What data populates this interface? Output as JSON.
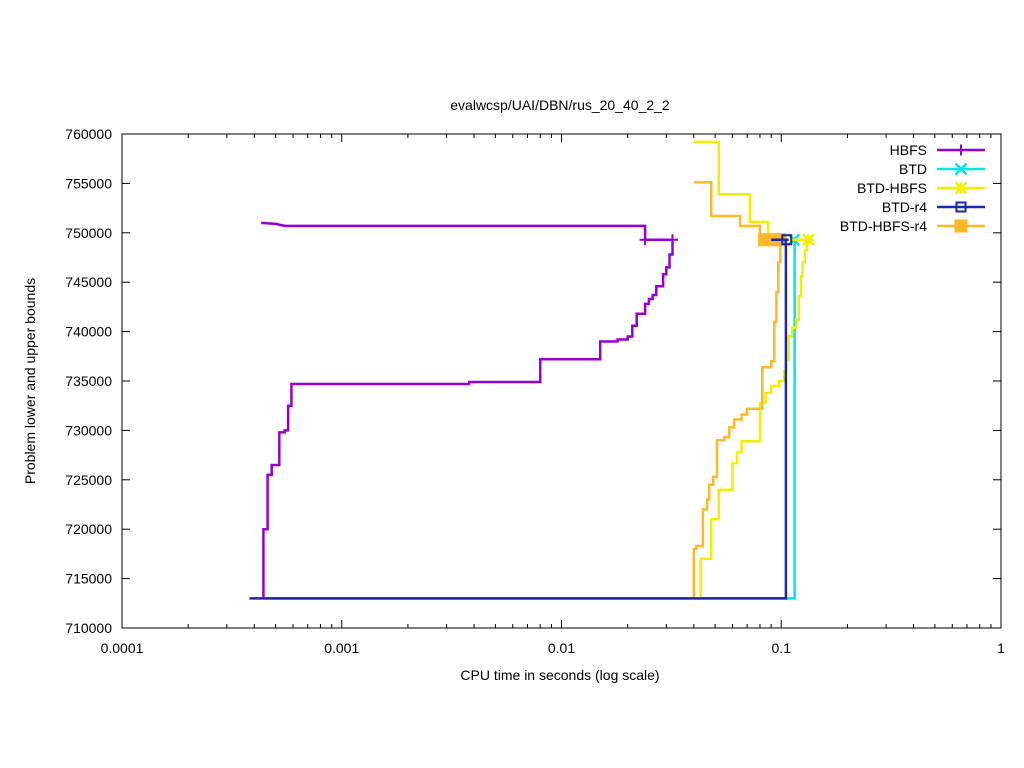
{
  "chart_data": {
    "type": "line",
    "title": "evalwcsp/UAI/DBN/rus_20_40_2_2",
    "xlabel": "CPU time in seconds (log scale)",
    "ylabel": "Problem lower and upper bounds",
    "xscale": "log",
    "xlim": [
      0.0001,
      1
    ],
    "ylim": [
      710000,
      760000
    ],
    "x_ticks": [
      0.0001,
      0.001,
      0.01,
      0.1,
      1
    ],
    "x_tick_labels": [
      "0.0001",
      "0.001",
      "0.01",
      "0.1",
      "1"
    ],
    "y_ticks": [
      710000,
      715000,
      720000,
      725000,
      730000,
      735000,
      740000,
      745000,
      750000,
      755000,
      760000
    ],
    "y_tick_labels": [
      "710000",
      "715000",
      "720000",
      "725000",
      "730000",
      "735000",
      "740000",
      "745000",
      "750000",
      "755000",
      "760000"
    ],
    "grid": false,
    "legend_position": "top-right",
    "series": [
      {
        "name": "HBFS",
        "color": "#9400d3",
        "marker": "plus",
        "upper": [
          [
            0.00043,
            751000
          ],
          [
            0.0005,
            750900
          ],
          [
            0.00055,
            750700
          ],
          [
            0.024,
            750700
          ],
          [
            0.024,
            749300
          ],
          [
            0.032,
            749300
          ]
        ],
        "lower": [
          [
            0.00044,
            713000
          ],
          [
            0.00044,
            720000
          ],
          [
            0.00046,
            720000
          ],
          [
            0.00046,
            725500
          ],
          [
            0.00048,
            725500
          ],
          [
            0.00048,
            726500
          ],
          [
            0.00052,
            726500
          ],
          [
            0.00052,
            729800
          ],
          [
            0.00055,
            729800
          ],
          [
            0.00055,
            730000
          ],
          [
            0.00057,
            730000
          ],
          [
            0.00057,
            732500
          ],
          [
            0.00059,
            732500
          ],
          [
            0.00059,
            734700
          ],
          [
            0.0038,
            734700
          ],
          [
            0.0038,
            734900
          ],
          [
            0.008,
            734900
          ],
          [
            0.008,
            737200
          ],
          [
            0.015,
            737200
          ],
          [
            0.015,
            739000
          ],
          [
            0.018,
            739000
          ],
          [
            0.018,
            739200
          ],
          [
            0.02,
            739200
          ],
          [
            0.02,
            739500
          ],
          [
            0.021,
            739500
          ],
          [
            0.021,
            740600
          ],
          [
            0.022,
            740600
          ],
          [
            0.022,
            741800
          ],
          [
            0.024,
            741800
          ],
          [
            0.024,
            742800
          ],
          [
            0.025,
            742800
          ],
          [
            0.025,
            743300
          ],
          [
            0.026,
            743300
          ],
          [
            0.026,
            743700
          ],
          [
            0.027,
            743700
          ],
          [
            0.027,
            744600
          ],
          [
            0.029,
            744600
          ],
          [
            0.029,
            745800
          ],
          [
            0.03,
            745800
          ],
          [
            0.03,
            746500
          ],
          [
            0.031,
            746500
          ],
          [
            0.031,
            747800
          ],
          [
            0.032,
            747800
          ],
          [
            0.032,
            749300
          ]
        ],
        "markers": [
          [
            0.024,
            749300
          ],
          [
            0.032,
            749300
          ]
        ]
      },
      {
        "name": "BTD",
        "color": "#00e5e5",
        "marker": "x",
        "upper": [
          [
            0.108,
            749300
          ],
          [
            0.116,
            749300
          ]
        ],
        "lower": [
          [
            0.00045,
            713000
          ],
          [
            0.115,
            713000
          ],
          [
            0.115,
            749300
          ]
        ],
        "markers": [
          [
            0.114,
            749300
          ]
        ]
      },
      {
        "name": "BTD-HBFS",
        "color": "#f0f000",
        "marker": "star",
        "upper": [
          [
            0.04,
            759200
          ],
          [
            0.052,
            759200
          ],
          [
            0.052,
            753900
          ],
          [
            0.072,
            753900
          ],
          [
            0.072,
            751100
          ],
          [
            0.087,
            751100
          ],
          [
            0.087,
            749300
          ],
          [
            0.133,
            749300
          ]
        ],
        "lower": [
          [
            0.00045,
            713000
          ],
          [
            0.043,
            713000
          ],
          [
            0.043,
            717000
          ],
          [
            0.048,
            717000
          ],
          [
            0.048,
            721000
          ],
          [
            0.052,
            721000
          ],
          [
            0.052,
            724000
          ],
          [
            0.06,
            724000
          ],
          [
            0.06,
            726700
          ],
          [
            0.063,
            726700
          ],
          [
            0.063,
            727800
          ],
          [
            0.066,
            727800
          ],
          [
            0.066,
            728900
          ],
          [
            0.08,
            728900
          ],
          [
            0.08,
            732800
          ],
          [
            0.085,
            732800
          ],
          [
            0.085,
            733800
          ],
          [
            0.09,
            733800
          ],
          [
            0.09,
            734500
          ],
          [
            0.098,
            734500
          ],
          [
            0.098,
            735000
          ],
          [
            0.103,
            735000
          ],
          [
            0.103,
            736000
          ],
          [
            0.105,
            736000
          ],
          [
            0.105,
            737100
          ],
          [
            0.108,
            737100
          ],
          [
            0.108,
            739500
          ],
          [
            0.112,
            739500
          ],
          [
            0.112,
            740400
          ],
          [
            0.117,
            740400
          ],
          [
            0.117,
            741200
          ],
          [
            0.12,
            741200
          ],
          [
            0.12,
            743600
          ],
          [
            0.123,
            743600
          ],
          [
            0.123,
            745600
          ],
          [
            0.125,
            745600
          ],
          [
            0.125,
            747000
          ],
          [
            0.128,
            747000
          ],
          [
            0.128,
            748200
          ],
          [
            0.131,
            748200
          ],
          [
            0.131,
            749300
          ]
        ],
        "markers": [
          [
            0.133,
            749300
          ]
        ]
      },
      {
        "name": "BTD-r4",
        "color": "#1c28a8",
        "marker": "square-open",
        "upper": [
          [
            0.09,
            749300
          ],
          [
            0.108,
            749300
          ]
        ],
        "lower": [
          [
            0.00038,
            713000
          ],
          [
            0.105,
            713000
          ],
          [
            0.105,
            749300
          ]
        ],
        "markers": [
          [
            0.106,
            749300
          ]
        ]
      },
      {
        "name": "BTD-HBFS-r4",
        "color": "#fbb829",
        "marker": "square-filled",
        "upper": [
          [
            0.04,
            755100
          ],
          [
            0.048,
            755100
          ],
          [
            0.048,
            751700
          ],
          [
            0.065,
            751700
          ],
          [
            0.065,
            750700
          ],
          [
            0.08,
            750700
          ],
          [
            0.08,
            749300
          ],
          [
            0.106,
            749300
          ]
        ],
        "lower": [
          [
            0.00042,
            713000
          ],
          [
            0.04,
            713000
          ],
          [
            0.04,
            718000
          ],
          [
            0.041,
            718000
          ],
          [
            0.041,
            718300
          ],
          [
            0.044,
            718300
          ],
          [
            0.044,
            722000
          ],
          [
            0.046,
            722000
          ],
          [
            0.046,
            723000
          ],
          [
            0.047,
            723000
          ],
          [
            0.047,
            724500
          ],
          [
            0.049,
            724500
          ],
          [
            0.049,
            725300
          ],
          [
            0.051,
            725300
          ],
          [
            0.051,
            729000
          ],
          [
            0.055,
            729000
          ],
          [
            0.055,
            729300
          ],
          [
            0.058,
            729300
          ],
          [
            0.058,
            730300
          ],
          [
            0.061,
            730300
          ],
          [
            0.061,
            731100
          ],
          [
            0.066,
            731100
          ],
          [
            0.066,
            731600
          ],
          [
            0.07,
            731600
          ],
          [
            0.07,
            732200
          ],
          [
            0.082,
            732200
          ],
          [
            0.082,
            736400
          ],
          [
            0.09,
            736400
          ],
          [
            0.09,
            737000
          ],
          [
            0.093,
            737000
          ],
          [
            0.093,
            741000
          ],
          [
            0.095,
            741000
          ],
          [
            0.095,
            744000
          ],
          [
            0.097,
            744000
          ],
          [
            0.097,
            747000
          ],
          [
            0.099,
            747000
          ],
          [
            0.099,
            749300
          ]
        ],
        "markers": [
          [
            0.084,
            749300
          ],
          [
            0.089,
            749300
          ],
          [
            0.094,
            749300
          ],
          [
            0.099,
            749300
          ]
        ]
      }
    ]
  }
}
